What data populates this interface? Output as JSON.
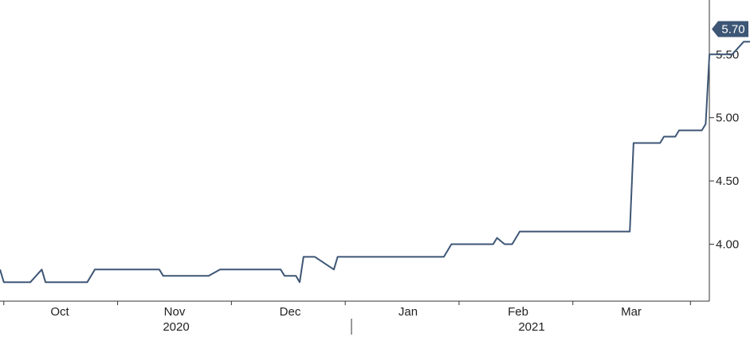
{
  "chart_data": {
    "type": "line",
    "title": "",
    "xlabel": "",
    "ylabel": "",
    "ylim": [
      3.55,
      5.93
    ],
    "y_ticks": [
      4.0,
      4.5,
      5.0,
      5.5
    ],
    "y_tick_labels": [
      "4.00",
      "4.50",
      "5.00",
      "5.50"
    ],
    "x_month_labels": [
      "Oct",
      "Nov",
      "Dec",
      "Jan",
      "Feb",
      "Mar"
    ],
    "x_year_labels": [
      "2020",
      "2021"
    ],
    "last_value_label": "5.70",
    "grid": false,
    "line_color": "#3d5675",
    "badge_color": "#3d5675",
    "x": [
      "2020-09-21",
      "2020-09-22",
      "2020-09-29",
      "2020-10-02",
      "2020-10-03",
      "2020-10-14",
      "2020-10-16",
      "2020-11-02",
      "2020-11-03",
      "2020-11-13",
      "2020-11-14",
      "2020-11-15",
      "2020-11-18",
      "2020-12-04",
      "2020-12-05",
      "2020-12-08",
      "2020-12-09",
      "2020-12-10",
      "2020-12-11",
      "2020-12-12",
      "2020-12-13",
      "2020-12-18",
      "2020-12-19",
      "2020-12-21",
      "2021-01-16",
      "2021-01-18",
      "2021-01-20",
      "2021-01-29",
      "2021-01-30",
      "2021-02-01",
      "2021-02-03",
      "2021-02-05",
      "2021-02-07",
      "2021-02-11",
      "2021-03-06",
      "2021-03-07",
      "2021-03-14",
      "2021-03-15",
      "2021-03-18",
      "2021-03-19",
      "2021-03-25",
      "2021-03-26",
      "2021-03-27",
      "2021-04-01",
      "2021-04-02",
      "2021-04-05",
      "2021-04-07",
      "2021-04-12",
      "2021-04-13",
      "2021-04-18",
      "2021-04-19",
      "2021-04-23",
      "2021-04-25",
      "2021-04-28",
      "2021-04-30"
    ],
    "values": [
      3.8,
      3.7,
      3.7,
      3.8,
      3.7,
      3.7,
      3.8,
      3.8,
      3.75,
      3.75,
      3.75,
      3.75,
      3.8,
      3.8,
      3.75,
      3.75,
      3.7,
      3.9,
      3.9,
      3.9,
      3.9,
      3.8,
      3.9,
      3.9,
      3.9,
      4.0,
      4.0,
      4.0,
      4.05,
      4.0,
      4.0,
      4.1,
      4.1,
      4.1,
      4.1,
      4.8,
      4.8,
      4.85,
      4.85,
      4.9,
      4.9,
      4.95,
      5.5,
      5.5,
      5.5,
      5.6,
      5.6,
      5.6,
      5.6,
      5.65,
      5.65,
      5.65,
      5.7,
      5.7,
      5.7
    ]
  }
}
